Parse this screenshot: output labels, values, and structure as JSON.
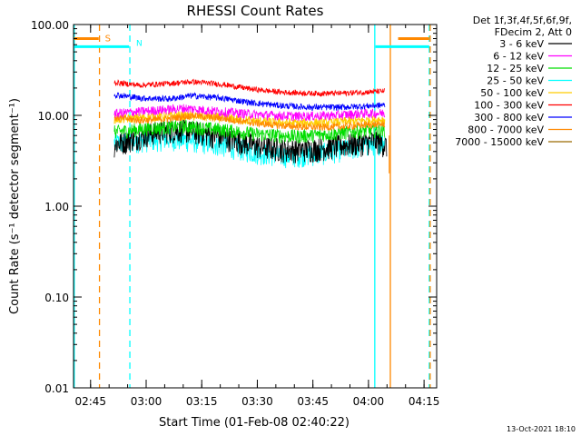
{
  "chart_data": {
    "type": "line",
    "title": "RHESSI Count Rates",
    "xlabel": "Start Time (01-Feb-08 02:40:22)",
    "ylabel": "Count Rate (s⁻¹ detector segment⁻¹)",
    "y_scale": "log",
    "ylim": [
      0.01,
      100
    ],
    "x_unit": "minutes after 02:40:22",
    "xlim": [
      0,
      98
    ],
    "x_ticks": [
      {
        "t": 4.6,
        "label": "02:45"
      },
      {
        "t": 19.6,
        "label": "03:00"
      },
      {
        "t": 34.6,
        "label": "03:15"
      },
      {
        "t": 49.6,
        "label": "03:30"
      },
      {
        "t": 64.6,
        "label": "03:45"
      },
      {
        "t": 79.6,
        "label": "04:00"
      },
      {
        "t": 94.6,
        "label": "04:15"
      }
    ],
    "y_ticks": [
      {
        "v": 100,
        "label": "100.00"
      },
      {
        "v": 10,
        "label": "10.00"
      },
      {
        "v": 1,
        "label": "1.00"
      },
      {
        "v": 0.1,
        "label": "0.10"
      },
      {
        "v": 0.01,
        "label": "0.01"
      }
    ],
    "legend_header": [
      "Det 1f,3f,4f,5f,6f,9f,",
      "FDecim 2, Att 0"
    ],
    "legend_position": "top-right, outside plot",
    "data_range": [
      11,
      84.5
    ],
    "series": [
      {
        "name": "3 - 6 keV",
        "color": "#000000",
        "noise": 0.3,
        "points": [
          [
            11,
            4.8
          ],
          [
            16,
            5.6
          ],
          [
            22,
            6.6
          ],
          [
            29,
            7.0
          ],
          [
            35,
            6.4
          ],
          [
            42,
            5.6
          ],
          [
            50,
            4.6
          ],
          [
            58,
            4.2
          ],
          [
            65,
            4.3
          ],
          [
            72,
            4.7
          ],
          [
            78,
            5.0
          ],
          [
            82,
            5.3
          ],
          [
            84.5,
            4.6
          ]
        ]
      },
      {
        "name": "6 - 12 keV",
        "color": "#ff00ff",
        "noise": 0.12,
        "points": [
          [
            11,
            10.5
          ],
          [
            20,
            11.2
          ],
          [
            30,
            12.0
          ],
          [
            40,
            11.0
          ],
          [
            50,
            10.2
          ],
          [
            60,
            9.8
          ],
          [
            70,
            10.0
          ],
          [
            78,
            10.5
          ],
          [
            84,
            10.6
          ]
        ]
      },
      {
        "name": "12 - 25 keV",
        "color": "#00dd00",
        "noise": 0.18,
        "points": [
          [
            11,
            6.6
          ],
          [
            20,
            7.2
          ],
          [
            30,
            7.6
          ],
          [
            40,
            7.0
          ],
          [
            50,
            6.2
          ],
          [
            60,
            5.9
          ],
          [
            70,
            6.3
          ],
          [
            78,
            6.8
          ],
          [
            84,
            6.9
          ]
        ]
      },
      {
        "name": "25 - 50 keV",
        "color": "#00ffff",
        "noise": 0.28,
        "points": [
          [
            11,
            5.0
          ],
          [
            18,
            5.3
          ],
          [
            26,
            5.6
          ],
          [
            34,
            5.2
          ],
          [
            42,
            4.6
          ],
          [
            50,
            3.9
          ],
          [
            58,
            3.6
          ],
          [
            66,
            3.8
          ],
          [
            74,
            4.3
          ],
          [
            80,
            4.8
          ],
          [
            84,
            5.2
          ]
        ]
      },
      {
        "name": "50 - 100 keV",
        "color": "#ffcc00",
        "noise": 0.12,
        "points": [
          [
            11,
            9.0
          ],
          [
            20,
            9.6
          ],
          [
            30,
            10.0
          ],
          [
            40,
            9.4
          ],
          [
            50,
            8.6
          ],
          [
            60,
            8.2
          ],
          [
            70,
            8.4
          ],
          [
            78,
            8.8
          ],
          [
            84,
            9.0
          ]
        ]
      },
      {
        "name": "100 - 300 keV",
        "color": "#ff0000",
        "noise": 0.07,
        "points": [
          [
            11,
            23
          ],
          [
            18,
            21.5
          ],
          [
            26,
            22.5
          ],
          [
            32,
            23.5
          ],
          [
            40,
            22
          ],
          [
            48,
            19.5
          ],
          [
            56,
            18
          ],
          [
            64,
            17.5
          ],
          [
            72,
            17.5
          ],
          [
            78,
            18
          ],
          [
            84,
            18.5
          ]
        ]
      },
      {
        "name": "300 - 800 keV",
        "color": "#0000ff",
        "noise": 0.08,
        "points": [
          [
            11,
            17
          ],
          [
            18,
            15.5
          ],
          [
            26,
            15.2
          ],
          [
            32,
            16.5
          ],
          [
            40,
            15.5
          ],
          [
            48,
            13.8
          ],
          [
            56,
            12.8
          ],
          [
            64,
            12.3
          ],
          [
            72,
            12.3
          ],
          [
            78,
            12.6
          ],
          [
            84,
            13.0
          ]
        ]
      },
      {
        "name": "800 - 7000 keV",
        "color": "#ff8800",
        "noise": 0.09,
        "points": [
          [
            11,
            9.5
          ],
          [
            18,
            8.8
          ],
          [
            26,
            9.2
          ],
          [
            32,
            10.0
          ],
          [
            40,
            9.3
          ],
          [
            48,
            8.3
          ],
          [
            56,
            7.7
          ],
          [
            64,
            7.4
          ],
          [
            72,
            7.5
          ],
          [
            78,
            7.8
          ],
          [
            84,
            8.0
          ]
        ]
      },
      {
        "name": "7000 - 15000 keV",
        "color": "#9a6a00",
        "noise": 0.0,
        "points": []
      }
    ],
    "annotations": [
      {
        "type": "s",
        "color": "#ff8800",
        "dashed_x": 7,
        "solid_x": 85.5,
        "s_label": "S"
      },
      {
        "type": "n",
        "color": "#00ffff",
        "dashed_x": 15.2,
        "solid_x": 81.3,
        "n_label": "N"
      }
    ],
    "s_left_bar": {
      "x": [
        0.2,
        6.8
      ],
      "y": 70
    },
    "s_right_bar": {
      "x": [
        87.6,
        96
      ],
      "y": 70
    },
    "n_left_bar": {
      "x": [
        0.2,
        15
      ],
      "y": 57
    },
    "n_right_bar": {
      "x": [
        81.5,
        96
      ],
      "y": 57
    },
    "s_dashed_right_x": 96,
    "n_solid_left_x": 0.2,
    "dip": {
      "x": 85.2,
      "y_from": 6,
      "y_to": 2.3
    }
  },
  "footer": {
    "timestamp": "13-Oct-2021 18:10"
  }
}
